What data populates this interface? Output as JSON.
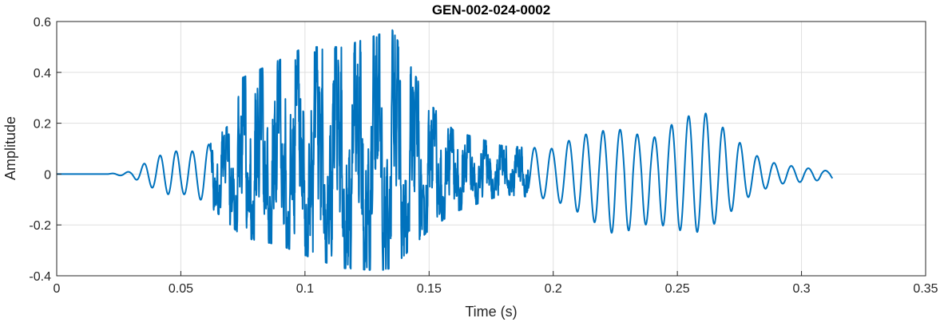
{
  "chart_data": {
    "type": "line",
    "title": "GEN-002-024-0002",
    "xlabel": "Time (s)",
    "ylabel": "Amplitude",
    "xlim": [
      0,
      0.35
    ],
    "ylim": [
      -0.4,
      0.6
    ],
    "x_ticks": [
      "0",
      "0.05",
      "0.1",
      "0.15",
      "0.2",
      "0.25",
      "0.3",
      "0.35"
    ],
    "y_ticks": [
      "-0.4",
      "-0.2",
      "0",
      "0.2",
      "0.4",
      "0.6"
    ],
    "grid": true,
    "line_color": "#0072BD",
    "series": [
      {
        "signal_end_time": 0.3125,
        "envelope": [
          {
            "t": 0.0,
            "pos": 0.0,
            "neg": 0.0
          },
          {
            "t": 0.02,
            "pos": 0.0,
            "neg": 0.0
          },
          {
            "t": 0.03,
            "pos": 0.01,
            "neg": -0.01
          },
          {
            "t": 0.035,
            "pos": 0.04,
            "neg": -0.04
          },
          {
            "t": 0.045,
            "pos": 0.09,
            "neg": -0.08
          },
          {
            "t": 0.055,
            "pos": 0.09,
            "neg": -0.08
          },
          {
            "t": 0.062,
            "pos": 0.12,
            "neg": -0.13
          },
          {
            "t": 0.07,
            "pos": 0.2,
            "neg": -0.2
          },
          {
            "t": 0.075,
            "pos": 0.38,
            "neg": -0.25
          },
          {
            "t": 0.09,
            "pos": 0.45,
            "neg": -0.28
          },
          {
            "t": 0.1,
            "pos": 0.5,
            "neg": -0.32
          },
          {
            "t": 0.115,
            "pos": 0.5,
            "neg": -0.37
          },
          {
            "t": 0.13,
            "pos": 0.55,
            "neg": -0.38
          },
          {
            "t": 0.135,
            "pos": 0.57,
            "neg": -0.37
          },
          {
            "t": 0.15,
            "pos": 0.28,
            "neg": -0.22
          },
          {
            "t": 0.16,
            "pos": 0.17,
            "neg": -0.15
          },
          {
            "t": 0.18,
            "pos": 0.11,
            "neg": -0.08
          },
          {
            "t": 0.2,
            "pos": 0.1,
            "neg": -0.1
          },
          {
            "t": 0.21,
            "pos": 0.15,
            "neg": -0.15
          },
          {
            "t": 0.225,
            "pos": 0.18,
            "neg": -0.24
          },
          {
            "t": 0.24,
            "pos": 0.14,
            "neg": -0.19
          },
          {
            "t": 0.25,
            "pos": 0.21,
            "neg": -0.22
          },
          {
            "t": 0.26,
            "pos": 0.25,
            "neg": -0.23
          },
          {
            "t": 0.27,
            "pos": 0.17,
            "neg": -0.16
          },
          {
            "t": 0.28,
            "pos": 0.08,
            "neg": -0.08
          },
          {
            "t": 0.29,
            "pos": 0.04,
            "neg": -0.04
          },
          {
            "t": 0.3125,
            "pos": 0.01,
            "neg": -0.02
          }
        ],
        "noisy_segment": [
          0.062,
          0.19
        ]
      }
    ]
  }
}
